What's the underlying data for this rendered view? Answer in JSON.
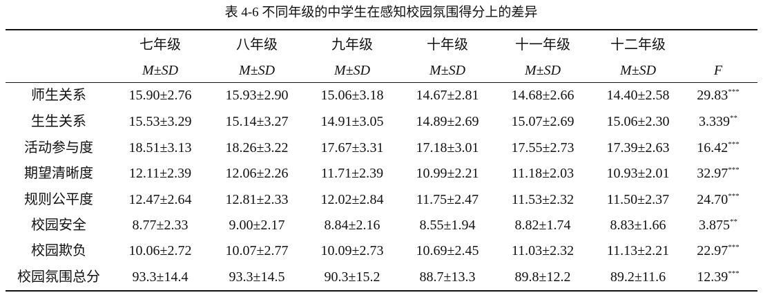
{
  "title": "表 4-6 不同年级的中学生在感知校园氛围得分上的差异",
  "header": {
    "grades": [
      "七年级",
      "八年级",
      "九年级",
      "十年级",
      "十一年级",
      "十二年级"
    ],
    "stat": [
      "M±SD",
      "M±SD",
      "M±SD",
      "M±SD",
      "M±SD",
      "M±SD"
    ],
    "f": "F"
  },
  "rows": [
    {
      "label": "师生关系",
      "cells": [
        "15.90±2.76",
        "15.93±2.90",
        "15.06±3.18",
        "14.67±2.81",
        "14.68±2.66",
        "14.40±2.58"
      ],
      "f": "29.83",
      "sig": "***"
    },
    {
      "label": "生生关系",
      "cells": [
        "15.53±3.29",
        "15.14±3.27",
        "14.91±3.05",
        "14.89±2.69",
        "15.07±2.69",
        "15.06±2.30"
      ],
      "f": "3.339",
      "sig": "**"
    },
    {
      "label": "活动参与度",
      "cells": [
        "18.51±3.13",
        "18.26±3.22",
        "17.67±3.31",
        "17.18±3.01",
        "17.55±2.73",
        "17.39±2.63"
      ],
      "f": "16.42",
      "sig": "***"
    },
    {
      "label": "期望清晰度",
      "cells": [
        "12.11±2.39",
        "12.06±2.26",
        "11.71±2.39",
        "10.99±2.21",
        "11.18±2.03",
        "10.93±2.01"
      ],
      "f": "32.97",
      "sig": "***"
    },
    {
      "label": "规则公平度",
      "cells": [
        "12.47±2.64",
        "12.81±2.33",
        "12.02±2.84",
        "11.75±2.47",
        "11.53±2.32",
        "11.50±2.37"
      ],
      "f": "24.70",
      "sig": "***"
    },
    {
      "label": "校园安全",
      "cells": [
        "8.77±2.33",
        "9.00±2.17",
        "8.84±2.16",
        "8.55±1.94",
        "8.82±1.74",
        "8.83±1.66"
      ],
      "f": "3.875",
      "sig": "**"
    },
    {
      "label": "校园欺负",
      "cells": [
        "10.06±2.72",
        "10.07±2.77",
        "10.09±2.73",
        "10.69±2.45",
        "11.03±2.32",
        "11.13±2.21"
      ],
      "f": "22.97",
      "sig": "***"
    },
    {
      "label": "校园氛围总分",
      "cells": [
        "93.3±14.4",
        "93.3±14.5",
        "90.3±15.2",
        "88.7±13.3",
        "89.8±12.2",
        "89.2±11.6"
      ],
      "f": "12.39",
      "sig": "***"
    }
  ]
}
